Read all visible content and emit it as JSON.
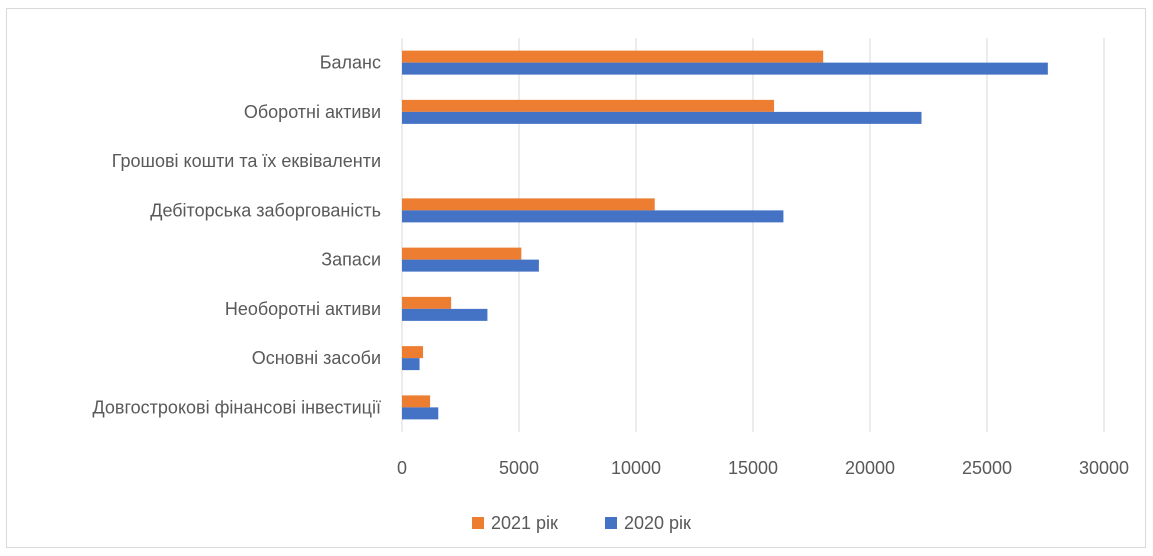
{
  "chart_data": {
    "type": "bar",
    "orientation": "horizontal",
    "title": "",
    "xlabel": "",
    "ylabel": "",
    "categories": [
      "Баланс",
      "Оборотні активи",
      "Грошові кошти та їх еквіваленти",
      "Дебіторська заборгованість",
      "Запаси",
      "Необоротні активи",
      "Основні засоби",
      "Довгострокові фінансові інвестиції"
    ],
    "series": [
      {
        "name": "2021 рік",
        "color": "#ED7D31",
        "values": [
          18000,
          15900,
          0,
          10800,
          5100,
          2100,
          900,
          1200
        ]
      },
      {
        "name": "2020 рік",
        "color": "#4472C4",
        "values": [
          27600,
          22200,
          0,
          16300,
          5850,
          3650,
          750,
          1550
        ]
      }
    ],
    "xlim": [
      0,
      30000
    ],
    "xticks": [
      "0",
      "5000",
      "10000",
      "15000",
      "20000",
      "25000",
      "30000"
    ],
    "grid": true,
    "legend_position": "bottom"
  }
}
